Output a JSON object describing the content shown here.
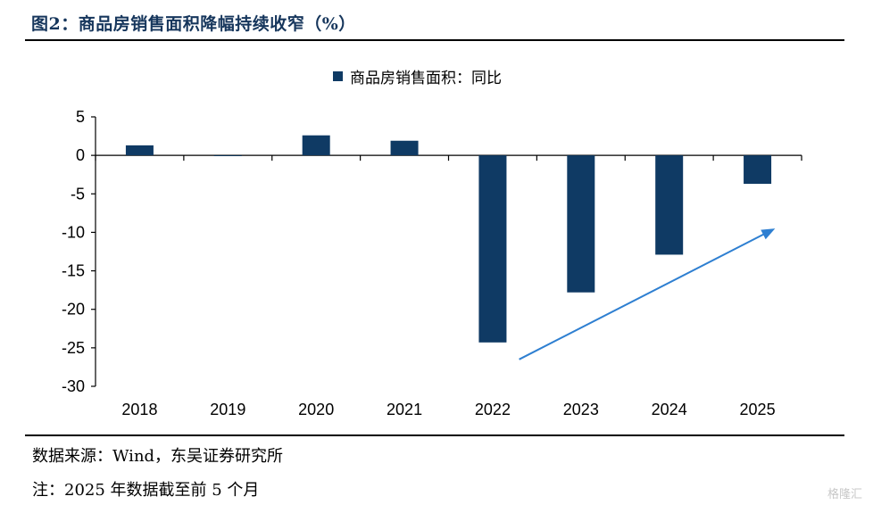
{
  "figure": {
    "title": "图2：商品房销售面积降幅持续收窄（%）",
    "source": "数据来源：Wind，东吴证券研究所",
    "note": "注：2025 年数据截至前 5 个月",
    "watermark": "格隆汇"
  },
  "chart_data": {
    "type": "bar",
    "categories": [
      "2018",
      "2019",
      "2020",
      "2021",
      "2022",
      "2023",
      "2024",
      "2025"
    ],
    "series": [
      {
        "name": "商品房销售面积：同比",
        "values": [
          1.3,
          -0.1,
          2.6,
          1.9,
          -24.3,
          -17.8,
          -12.9,
          -3.7
        ],
        "color": "#0f3a64"
      }
    ],
    "ylim": [
      -30,
      5
    ],
    "yticks": [
      5,
      0,
      -5,
      -10,
      -15,
      -20,
      -25,
      -30
    ],
    "legend_position": "top-center",
    "grid": false,
    "annotation": {
      "type": "arrow",
      "color": "#2e7fd1",
      "from": {
        "x": "2022.3",
        "y": -26.5
      },
      "to": {
        "x": "2025.2",
        "y": -9.5
      }
    }
  }
}
